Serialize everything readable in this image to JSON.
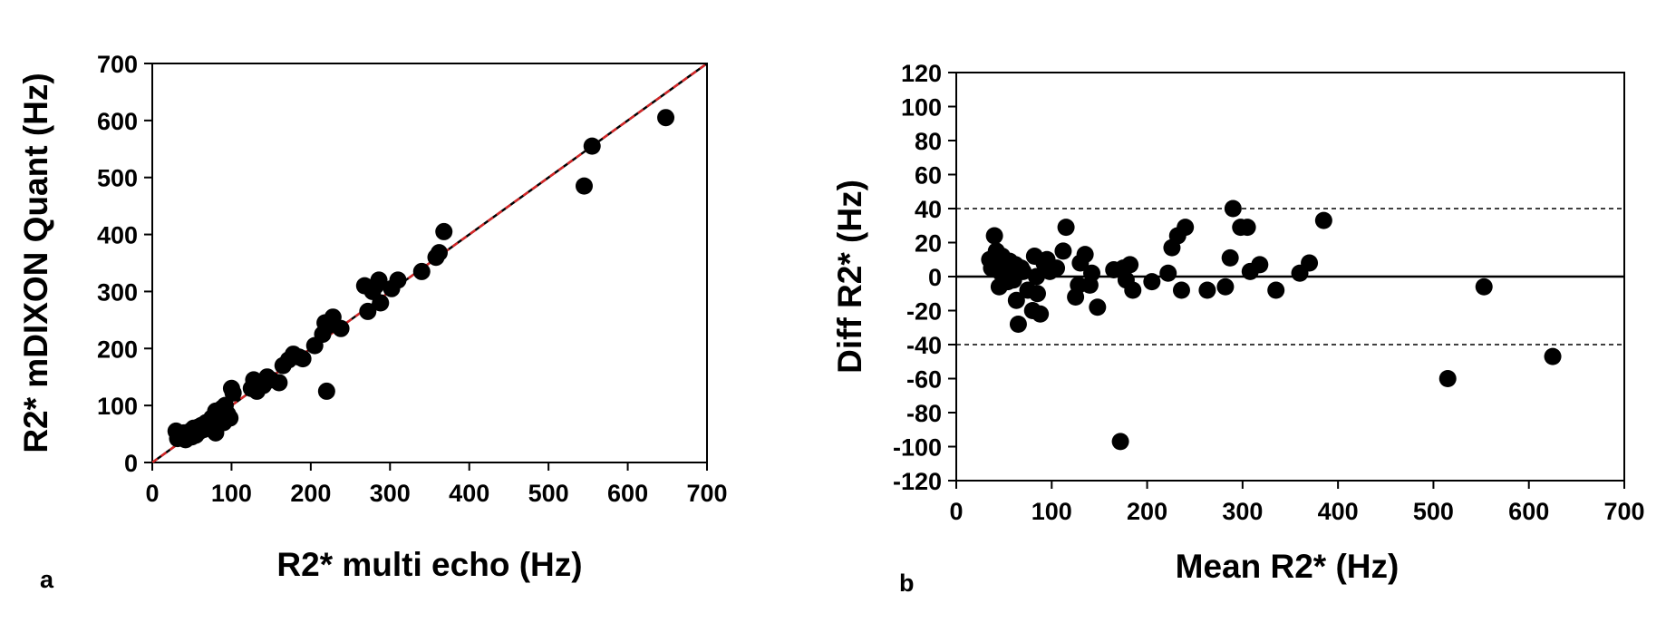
{
  "chart_data": [
    {
      "type": "scatter",
      "panel_label": "a",
      "title": "",
      "xlabel": "R2* multi echo  (Hz)",
      "ylabel": "R2* mDIXON Quant (Hz)",
      "xlim": [
        0,
        700
      ],
      "ylim": [
        0,
        700
      ],
      "xticks": [
        0,
        100,
        200,
        300,
        400,
        500,
        600,
        700
      ],
      "yticks": [
        0,
        100,
        200,
        300,
        400,
        500,
        600,
        700
      ],
      "grid": false,
      "legend": "none",
      "lines": [
        {
          "kind": "identity",
          "x": [
            0,
            700
          ],
          "y": [
            0,
            700
          ],
          "color": "#000000",
          "style": "solid"
        },
        {
          "kind": "regression",
          "x": [
            0,
            700
          ],
          "y": [
            0,
            700
          ],
          "color": "#d62728",
          "style": "dashed"
        }
      ],
      "points": [
        [
          30,
          55
        ],
        [
          32,
          42
        ],
        [
          35,
          48
        ],
        [
          38,
          45
        ],
        [
          40,
          52
        ],
        [
          42,
          40
        ],
        [
          45,
          50
        ],
        [
          48,
          55
        ],
        [
          50,
          45
        ],
        [
          52,
          60
        ],
        [
          55,
          48
        ],
        [
          58,
          62
        ],
        [
          60,
          55
        ],
        [
          62,
          65
        ],
        [
          65,
          58
        ],
        [
          68,
          70
        ],
        [
          70,
          62
        ],
        [
          72,
          68
        ],
        [
          75,
          78
        ],
        [
          78,
          72
        ],
        [
          80,
          90
        ],
        [
          80,
          52
        ],
        [
          82,
          85
        ],
        [
          85,
          80
        ],
        [
          88,
          95
        ],
        [
          90,
          70
        ],
        [
          92,
          100
        ],
        [
          95,
          85
        ],
        [
          98,
          78
        ],
        [
          100,
          130
        ],
        [
          102,
          122
        ],
        [
          125,
          130
        ],
        [
          128,
          145
        ],
        [
          132,
          125
        ],
        [
          135,
          140
        ],
        [
          140,
          135
        ],
        [
          145,
          150
        ],
        [
          150,
          145
        ],
        [
          160,
          140
        ],
        [
          165,
          170
        ],
        [
          172,
          180
        ],
        [
          178,
          190
        ],
        [
          185,
          185
        ],
        [
          190,
          182
        ],
        [
          205,
          205
        ],
        [
          215,
          225
        ],
        [
          218,
          245
        ],
        [
          220,
          125
        ],
        [
          222,
          240
        ],
        [
          228,
          255
        ],
        [
          238,
          235
        ],
        [
          268,
          310
        ],
        [
          272,
          265
        ],
        [
          278,
          300
        ],
        [
          282,
          310
        ],
        [
          286,
          320
        ],
        [
          288,
          280
        ],
        [
          302,
          305
        ],
        [
          310,
          320
        ],
        [
          340,
          335
        ],
        [
          358,
          360
        ],
        [
          362,
          368
        ],
        [
          368,
          405
        ],
        [
          545,
          485
        ],
        [
          555,
          555
        ],
        [
          648,
          605
        ]
      ]
    },
    {
      "type": "scatter",
      "panel_label": "b",
      "title": "",
      "xlabel": "Mean R2* (Hz)",
      "ylabel": "Diff R2* (Hz)",
      "xlim": [
        0,
        700
      ],
      "ylim": [
        -120,
        120
      ],
      "xticks": [
        0,
        100,
        200,
        300,
        400,
        500,
        600,
        700
      ],
      "yticks": [
        -120,
        -100,
        -80,
        -60,
        -40,
        -20,
        0,
        20,
        40,
        60,
        80,
        100,
        120
      ],
      "grid": false,
      "legend": "none",
      "lines": [
        {
          "kind": "mean-difference",
          "y": 0,
          "color": "#000000",
          "style": "solid"
        },
        {
          "kind": "upper-limit",
          "y": 40,
          "color": "#000000",
          "style": "dashed"
        },
        {
          "kind": "lower-limit",
          "y": -40,
          "color": "#000000",
          "style": "dashed"
        }
      ],
      "points": [
        [
          35,
          10
        ],
        [
          37,
          5
        ],
        [
          40,
          24
        ],
        [
          42,
          15
        ],
        [
          44,
          8
        ],
        [
          45,
          -6
        ],
        [
          47,
          2
        ],
        [
          48,
          12
        ],
        [
          50,
          0
        ],
        [
          52,
          6
        ],
        [
          54,
          -3
        ],
        [
          56,
          9
        ],
        [
          58,
          4
        ],
        [
          60,
          -2
        ],
        [
          62,
          7
        ],
        [
          63,
          -14
        ],
        [
          65,
          -28
        ],
        [
          68,
          5
        ],
        [
          70,
          3
        ],
        [
          75,
          -8
        ],
        [
          80,
          -20
        ],
        [
          82,
          12
        ],
        [
          84,
          0
        ],
        [
          85,
          -10
        ],
        [
          88,
          -22
        ],
        [
          92,
          8
        ],
        [
          95,
          10
        ],
        [
          98,
          3
        ],
        [
          105,
          5
        ],
        [
          112,
          15
        ],
        [
          115,
          29
        ],
        [
          125,
          -12
        ],
        [
          128,
          -5
        ],
        [
          130,
          8
        ],
        [
          135,
          13
        ],
        [
          140,
          -5
        ],
        [
          142,
          2
        ],
        [
          148,
          -18
        ],
        [
          165,
          4
        ],
        [
          172,
          -97
        ],
        [
          175,
          5
        ],
        [
          178,
          -2
        ],
        [
          182,
          7
        ],
        [
          185,
          -8
        ],
        [
          205,
          -3
        ],
        [
          222,
          2
        ],
        [
          226,
          17
        ],
        [
          232,
          24
        ],
        [
          236,
          -8
        ],
        [
          240,
          29
        ],
        [
          263,
          -8
        ],
        [
          282,
          -6
        ],
        [
          287,
          11
        ],
        [
          290,
          40
        ],
        [
          298,
          29
        ],
        [
          305,
          29
        ],
        [
          308,
          3
        ],
        [
          318,
          7
        ],
        [
          335,
          -8
        ],
        [
          360,
          2
        ],
        [
          370,
          8
        ],
        [
          385,
          33
        ],
        [
          515,
          -60
        ],
        [
          553,
          -6
        ],
        [
          625,
          -47
        ]
      ]
    }
  ]
}
